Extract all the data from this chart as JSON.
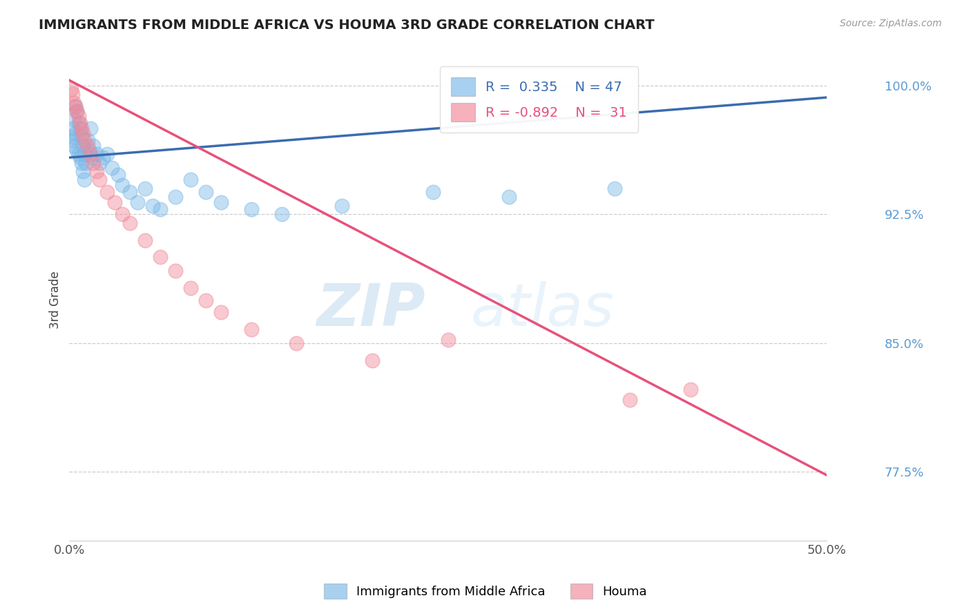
{
  "title": "IMMIGRANTS FROM MIDDLE AFRICA VS HOUMA 3RD GRADE CORRELATION CHART",
  "source_text": "Source: ZipAtlas.com",
  "ylabel": "3rd Grade",
  "xlim": [
    0.0,
    0.5
  ],
  "ylim": [
    0.735,
    1.015
  ],
  "yticks": [
    1.0,
    0.925,
    0.85,
    0.775
  ],
  "ytick_labels": [
    "100.0%",
    "92.5%",
    "85.0%",
    "77.5%"
  ],
  "xticks": [
    0.0,
    0.5
  ],
  "xtick_labels": [
    "0.0%",
    "50.0%"
  ],
  "blue_label": "Immigrants from Middle Africa",
  "pink_label": "Houma",
  "blue_R": 0.335,
  "blue_N": 47,
  "pink_R": -0.892,
  "pink_N": 31,
  "blue_color": "#7ab8e8",
  "pink_color": "#f08898",
  "blue_line_color": "#3a6cb0",
  "pink_line_color": "#e8507a",
  "watermark_zip": "ZIP",
  "watermark_atlas": "atlas",
  "blue_line_x0": 0.0,
  "blue_line_y0": 0.958,
  "blue_line_x1": 0.5,
  "blue_line_y1": 0.993,
  "pink_line_x0": 0.0,
  "pink_line_y0": 1.003,
  "pink_line_x1": 0.5,
  "pink_line_y1": 0.773,
  "blue_scatter_x": [
    0.001,
    0.002,
    0.002,
    0.003,
    0.003,
    0.004,
    0.004,
    0.005,
    0.005,
    0.006,
    0.006,
    0.007,
    0.007,
    0.008,
    0.008,
    0.009,
    0.009,
    0.01,
    0.01,
    0.011,
    0.012,
    0.013,
    0.014,
    0.015,
    0.016,
    0.018,
    0.02,
    0.022,
    0.025,
    0.028,
    0.032,
    0.035,
    0.04,
    0.045,
    0.05,
    0.055,
    0.06,
    0.07,
    0.08,
    0.09,
    0.1,
    0.12,
    0.14,
    0.18,
    0.24,
    0.29,
    0.36
  ],
  "blue_scatter_y": [
    0.97,
    0.975,
    0.968,
    0.98,
    0.965,
    0.988,
    0.972,
    0.985,
    0.962,
    0.978,
    0.96,
    0.975,
    0.958,
    0.97,
    0.955,
    0.965,
    0.95,
    0.96,
    0.945,
    0.955,
    0.968,
    0.962,
    0.975,
    0.958,
    0.965,
    0.96,
    0.955,
    0.958,
    0.96,
    0.952,
    0.948,
    0.942,
    0.938,
    0.932,
    0.94,
    0.93,
    0.928,
    0.935,
    0.945,
    0.938,
    0.932,
    0.928,
    0.925,
    0.93,
    0.938,
    0.935,
    0.94
  ],
  "pink_scatter_x": [
    0.001,
    0.002,
    0.003,
    0.004,
    0.005,
    0.006,
    0.007,
    0.008,
    0.009,
    0.01,
    0.012,
    0.014,
    0.016,
    0.018,
    0.02,
    0.025,
    0.03,
    0.035,
    0.04,
    0.05,
    0.06,
    0.07,
    0.08,
    0.09,
    0.1,
    0.12,
    0.15,
    0.2,
    0.25,
    0.37,
    0.41
  ],
  "pink_scatter_y": [
    0.998,
    0.995,
    0.99,
    0.988,
    0.985,
    0.982,
    0.978,
    0.975,
    0.972,
    0.968,
    0.965,
    0.96,
    0.955,
    0.95,
    0.945,
    0.938,
    0.932,
    0.925,
    0.92,
    0.91,
    0.9,
    0.892,
    0.882,
    0.875,
    0.868,
    0.858,
    0.85,
    0.84,
    0.852,
    0.817,
    0.823
  ]
}
